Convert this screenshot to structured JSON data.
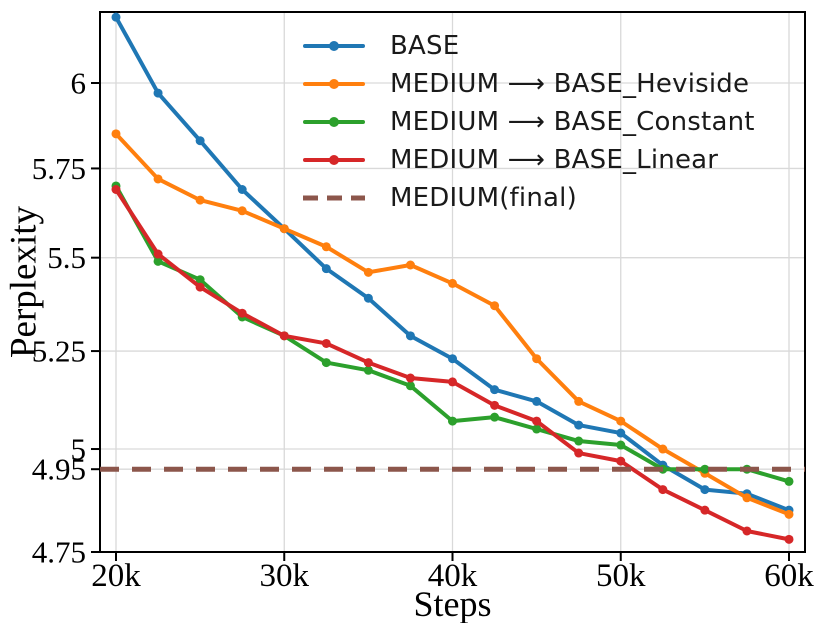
{
  "chart_data": {
    "type": "line",
    "title": "",
    "xlabel": "Steps",
    "ylabel": "Perplexity",
    "yscale": "log",
    "x_unit": "thousands of steps",
    "grid": true,
    "legend_position": "upper right",
    "x": [
      20,
      22.5,
      25,
      27.5,
      30,
      32.5,
      35,
      37.5,
      40,
      42.5,
      45,
      47.5,
      50,
      52.5,
      55,
      57.5,
      60
    ],
    "xticks": [
      20,
      30,
      40,
      50,
      60
    ],
    "xtick_labels": [
      "20k",
      "30k",
      "40k",
      "50k",
      "60k"
    ],
    "yticks": [
      6,
      5.75,
      5.5,
      5.25,
      5,
      4.95,
      4.75
    ],
    "ytick_labels": [
      "6",
      "5.75",
      "5.5",
      "5.25",
      "5",
      "4.95",
      "4.75"
    ],
    "xlim": [
      19.05,
      60.95
    ],
    "ylim": [
      4.75,
      6.22
    ],
    "series": [
      {
        "id": "base",
        "name": "BASE",
        "color": "#1f77b4",
        "marker": "circle",
        "values": [
          6.2,
          5.97,
          5.83,
          5.69,
          5.58,
          5.47,
          5.39,
          5.29,
          5.23,
          5.15,
          5.12,
          5.06,
          5.04,
          4.96,
          4.9,
          4.89,
          4.85
        ]
      },
      {
        "id": "heviside",
        "name": "MEDIUM ⟶ BASE_Heviside",
        "color": "#ff7f0e",
        "marker": "circle",
        "values": [
          5.85,
          5.72,
          5.66,
          5.63,
          5.58,
          5.53,
          5.46,
          5.48,
          5.43,
          5.37,
          5.23,
          5.12,
          5.07,
          5.0,
          4.94,
          4.88,
          4.84
        ]
      },
      {
        "id": "constant",
        "name": "MEDIUM ⟶ BASE_Constant",
        "color": "#2ca02c",
        "marker": "circle",
        "values": [
          5.7,
          5.49,
          5.44,
          5.34,
          5.29,
          5.22,
          5.2,
          5.16,
          5.07,
          5.08,
          5.05,
          5.02,
          5.01,
          4.95,
          4.95,
          4.95,
          4.92
        ]
      },
      {
        "id": "linear",
        "name": "MEDIUM ⟶ BASE_Linear",
        "color": "#d62728",
        "marker": "circle",
        "values": [
          5.69,
          5.51,
          5.42,
          5.35,
          5.29,
          5.27,
          5.22,
          5.18,
          5.17,
          5.11,
          5.07,
          4.99,
          4.97,
          4.9,
          4.85,
          4.8,
          4.78
        ]
      }
    ],
    "reference_line": {
      "id": "medium-final",
      "name": "MEDIUM(final)",
      "color": "#8c564b",
      "value": 4.95,
      "style": "dashed"
    },
    "style": {
      "grid_color": "#d9d9d9",
      "spine_color": "#000000",
      "line_width": 4,
      "marker_radius": 4.5,
      "ref_line_width": 5
    }
  }
}
